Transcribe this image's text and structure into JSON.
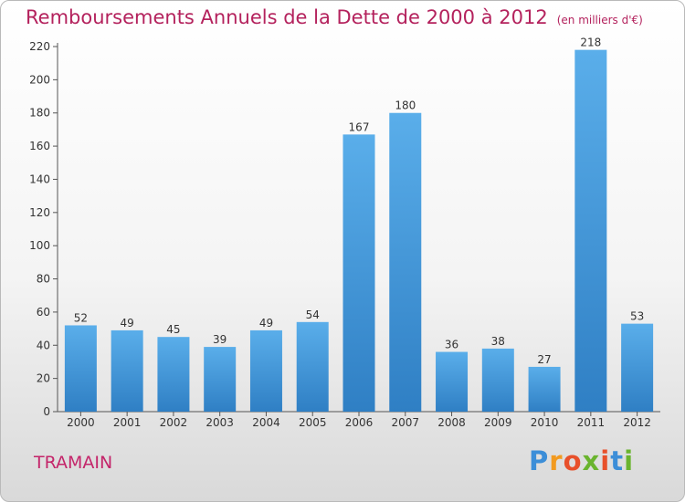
{
  "title": "Remboursements Annuels de la Dette de 2000 à 2012",
  "unit_note": "(en milliers d'€)",
  "commune": "TRAMAIN",
  "logo": {
    "letters": [
      "P",
      "r",
      "o",
      "x",
      "i",
      "t",
      "i"
    ],
    "colors": [
      "#3c8ed8",
      "#f29a1f",
      "#e8502a",
      "#6ab42e",
      "#e8502a",
      "#3c8ed8",
      "#6ab42e"
    ]
  },
  "colors": {
    "bar_top": "#5aaeea",
    "bar_bottom": "#2f7fc4",
    "title": "#b4225d"
  },
  "chart_data": {
    "type": "bar",
    "categories": [
      "2000",
      "2001",
      "2002",
      "2003",
      "2004",
      "2005",
      "2006",
      "2007",
      "2008",
      "2009",
      "2010",
      "2011",
      "2012"
    ],
    "values": [
      52,
      49,
      45,
      39,
      49,
      54,
      167,
      180,
      36,
      38,
      27,
      218,
      53
    ],
    "data_labels": [
      "52",
      "49",
      "45",
      "39",
      "49",
      "54",
      "167",
      "180",
      "36",
      "38",
      "27",
      "218",
      "53"
    ],
    "yticks": [
      0,
      20,
      40,
      60,
      80,
      100,
      120,
      140,
      160,
      180,
      200,
      220
    ],
    "ylim": [
      0,
      220
    ],
    "grid": false,
    "legend": "none"
  }
}
